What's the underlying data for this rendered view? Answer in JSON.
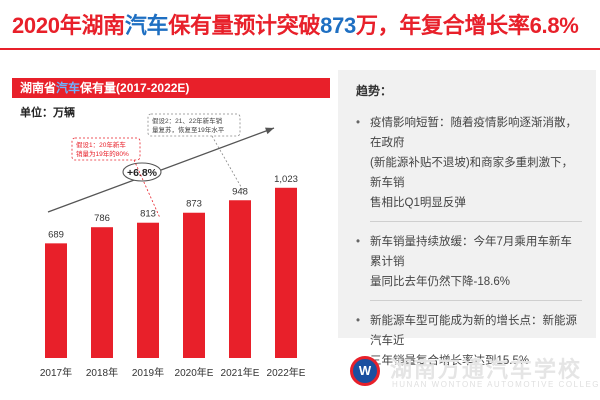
{
  "title": {
    "part1": "2020年湖南",
    "highlight": "汽车",
    "part2": "保有量预计突破",
    "number": "873",
    "part3": "万，年复合增长率6.8%"
  },
  "panel": {
    "header_prefix": "湖南省",
    "header_highlight": "汽车",
    "header_suffix": "保有量(2017-2022E)",
    "unit": "单位：万辆"
  },
  "colors": {
    "accent": "#e8202a",
    "highlight": "#1e6fc2",
    "bar": "#e8202a",
    "panel_bg": "#f1f1f1"
  },
  "chart_data": {
    "type": "bar",
    "categories": [
      "2017年",
      "2018年",
      "2019年",
      "2020年E",
      "2021年E",
      "2022年E"
    ],
    "values": [
      689,
      786,
      813,
      873,
      948,
      1023
    ],
    "value_labels": [
      "689",
      "786",
      "813",
      "873",
      "948",
      "1,023"
    ],
    "ylim": [
      0,
      1250
    ],
    "title": "",
    "xlabel": "",
    "ylabel": "",
    "grid": false,
    "annotations": {
      "growth_rate": "+6.8%",
      "note1": [
        "假设1：20年新车",
        "销量为19年的80%"
      ],
      "note2": [
        "假设2：21、22年新车销",
        "量复苏，恢复至19年水平"
      ]
    }
  },
  "trends": {
    "title": "趋势：",
    "items": [
      {
        "bullet": "•",
        "lines": [
          "疫情影响短暂：随着疫情影响逐渐消散，在政府",
          "(新能源补贴不退坡)和商家多重刺激下，新车销",
          "售相比Q1明显反弹"
        ]
      },
      {
        "bullet": "•",
        "lines": [
          "新车销量持续放缓：今年7月乘用车新车累计销",
          "量同比去年仍然下降-18.6%"
        ]
      },
      {
        "bullet": "•",
        "lines": [
          "新能源车型可能成为新的增长点：新能源汽车近",
          "三年销量复合增长率达到15.5%"
        ]
      }
    ]
  },
  "logo": {
    "mark": "W",
    "name_cn": "湖南万通汽车学校",
    "name_en": "HUNAN WONTONE AUTOMOTIVE COLLEGE"
  }
}
